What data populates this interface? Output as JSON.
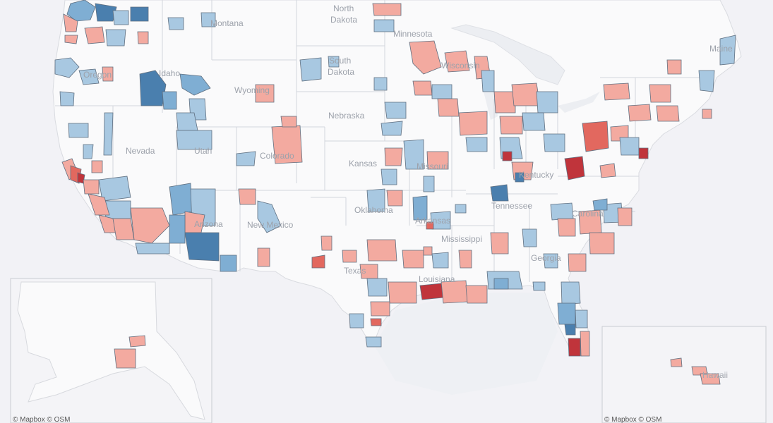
{
  "map": {
    "state_labels": {
      "north_dakota_l1": "North",
      "north_dakota_l2": "Dakota",
      "montana": "Montana",
      "minnesota": "Minnesota",
      "south_dakota_l1": "South",
      "south_dakota_l2": "Dakota",
      "oregon": "Oregon",
      "idaho": "Idaho",
      "wyoming": "Wyoming",
      "wisconsin": "Wisconsin",
      "maine": "Maine",
      "nebraska": "Nebraska",
      "nevada": "Nevada",
      "utah": "Utah",
      "colorado": "Colorado",
      "kansas": "Kansas",
      "missouri": "Missouri",
      "kentucky": "Kentucky",
      "tennessee": "Tennessee",
      "oklahoma": "Oklahoma",
      "arizona": "Arizona",
      "new_mexico": "New Mexico",
      "arkansas": "Arkansas",
      "mississippi": "Mississippi",
      "georgia": "Georgia",
      "carolina": "Carolina",
      "texas": "Texas",
      "louisiana": "Louisiana",
      "hawaii": "Hawaii"
    },
    "attribution_left": "© Mapbox  © OSM",
    "attribution_right": "© Mapbox  © OSM",
    "colors": {
      "dark_red": "#c0343b",
      "red": "#e2685f",
      "light_red": "#f3aaa0",
      "light_blue": "#a8c8e1",
      "blue": "#7faed3",
      "dark_blue": "#4a7fae",
      "water": "#f2f2f5",
      "land": "#f8f8fa",
      "border": "#d6d8dd"
    }
  }
}
